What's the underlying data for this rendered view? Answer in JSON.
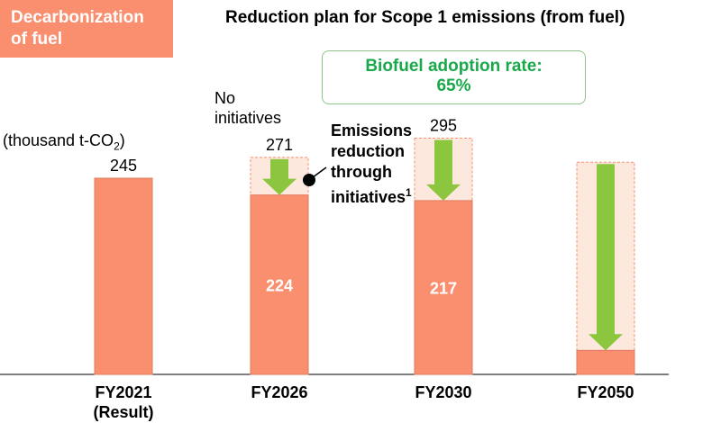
{
  "section_tag": {
    "line1": "Decarbonization",
    "line2": "of fuel"
  },
  "chart_data": {
    "type": "bar",
    "title": "Reduction plan for Scope 1 emissions (from fuel)",
    "unit_label_prefix": "(thousand t-CO",
    "unit_label_sub": "2",
    "unit_label_suffix": ")",
    "categories": [
      "FY2021",
      "FY2026",
      "FY2030",
      "FY2050"
    ],
    "category_sublabels": [
      "(Result)",
      "",
      "",
      ""
    ],
    "values": [
      245,
      224,
      217,
      30
    ],
    "baseline_without_initiatives": [
      null,
      271,
      295,
      265
    ],
    "bar_labels": [
      "245",
      "224",
      "217",
      ""
    ],
    "baseline_labels": [
      "",
      "271",
      "295",
      ""
    ],
    "ylim": [
      0,
      300
    ],
    "colors": {
      "bar": "#f98f6f",
      "baseline_fill": "#fde8de",
      "baseline_border": "#f98f6f",
      "arrow": "#8cc63f"
    }
  },
  "callout": {
    "line1": "Biofuel adoption rate:",
    "line2": "65%"
  },
  "no_initiatives_note": {
    "line1": "No",
    "line2": "initiatives"
  },
  "annotation": {
    "line1": "Emissions",
    "line2": "reduction",
    "line3": "through",
    "line4": "initiatives",
    "footnote_mark": "1"
  }
}
